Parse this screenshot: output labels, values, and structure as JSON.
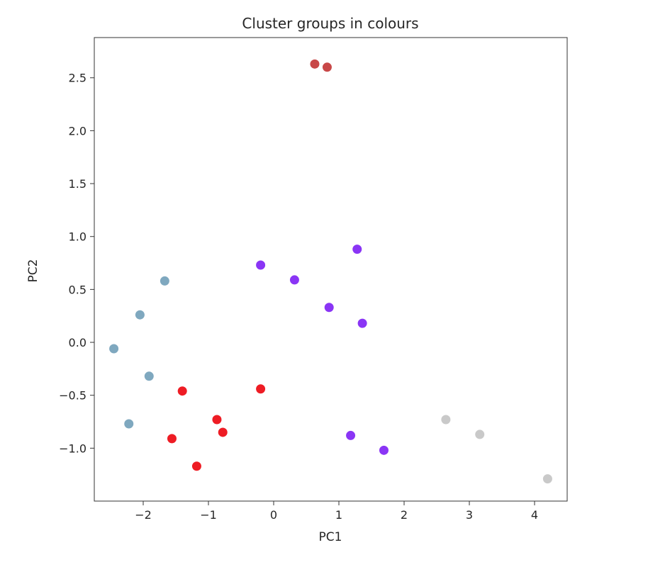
{
  "chart_data": {
    "type": "scatter",
    "title": "Cluster groups in colours",
    "xlabel": "PC1",
    "ylabel": "PC2",
    "xlim": [
      -2.75,
      4.5
    ],
    "ylim": [
      -1.5,
      2.88
    ],
    "xticks": [
      -2,
      -1,
      0,
      1,
      2,
      3,
      4
    ],
    "xtick_labels": [
      "−2",
      "−1",
      "0",
      "1",
      "2",
      "3",
      "4"
    ],
    "yticks": [
      -1.0,
      -0.5,
      0.0,
      0.5,
      1.0,
      1.5,
      2.0,
      2.5
    ],
    "ytick_labels": [
      "−1.0",
      "−0.5",
      "0.0",
      "0.5",
      "1.0",
      "1.5",
      "2.0",
      "2.5"
    ],
    "grid": false,
    "legend": "none",
    "series": [
      {
        "color": "#c84848",
        "points": [
          [
            0.63,
            2.63
          ],
          [
            0.82,
            2.6
          ]
        ]
      },
      {
        "color": "#7fa8bf",
        "points": [
          [
            -1.67,
            0.58
          ],
          [
            -2.05,
            0.26
          ],
          [
            -2.45,
            -0.06
          ],
          [
            -1.91,
            -0.32
          ],
          [
            -2.22,
            -0.77
          ]
        ]
      },
      {
        "color": "#8a35f5",
        "points": [
          [
            1.28,
            0.88
          ],
          [
            -0.2,
            0.73
          ],
          [
            0.32,
            0.59
          ],
          [
            0.85,
            0.33
          ],
          [
            1.36,
            0.18
          ],
          [
            1.18,
            -0.88
          ],
          [
            1.69,
            -1.02
          ]
        ]
      },
      {
        "color": "#ee1c24",
        "points": [
          [
            -1.4,
            -0.46
          ],
          [
            -0.2,
            -0.44
          ],
          [
            -0.87,
            -0.73
          ],
          [
            -0.78,
            -0.85
          ],
          [
            -1.56,
            -0.91
          ],
          [
            -1.18,
            -1.17
          ]
        ]
      },
      {
        "color": "#c9c9c9",
        "points": [
          [
            2.64,
            -0.73
          ],
          [
            3.16,
            -0.87
          ],
          [
            4.2,
            -1.29
          ]
        ]
      }
    ]
  }
}
